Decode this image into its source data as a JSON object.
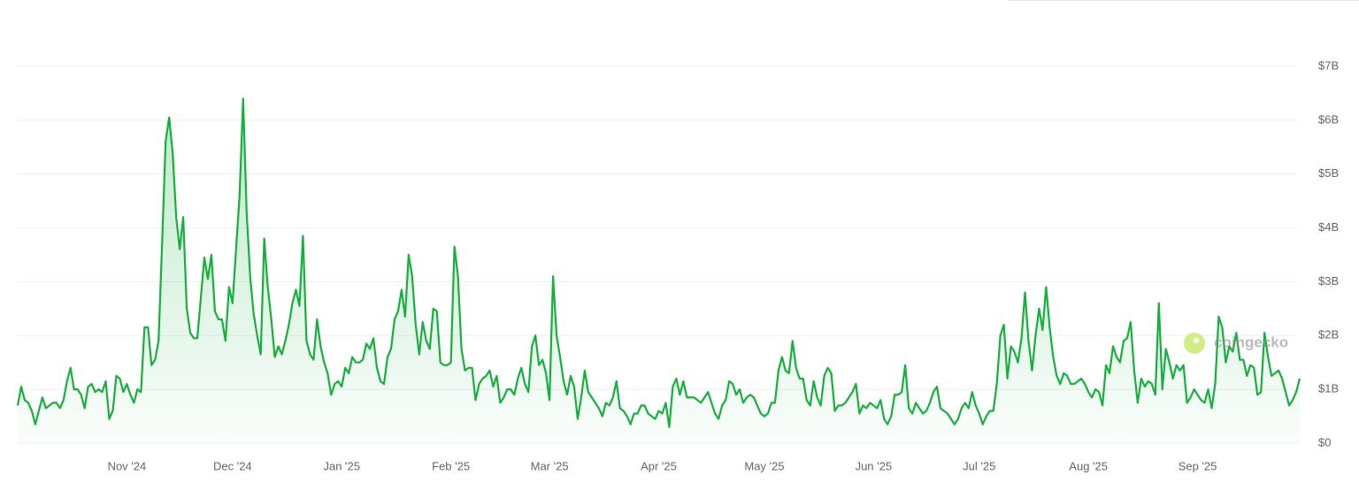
{
  "chart_data": {
    "type": "line",
    "watermark": "coingecko",
    "color": "#16b03c",
    "ylim": [
      0,
      7
    ],
    "yticks": [
      {
        "value": 0,
        "label": "$0"
      },
      {
        "value": 1,
        "label": "$1B"
      },
      {
        "value": 2,
        "label": "$2B"
      },
      {
        "value": 3,
        "label": "$3B"
      },
      {
        "value": 4,
        "label": "$4B"
      },
      {
        "value": 5,
        "label": "$5B"
      },
      {
        "value": 6,
        "label": "$6B"
      },
      {
        "value": 7,
        "label": "$7B"
      }
    ],
    "grid": true,
    "categories": [
      null,
      null,
      null,
      null,
      null,
      null,
      null,
      null,
      null,
      null,
      null,
      null,
      null,
      null,
      null,
      null,
      null,
      null,
      null,
      null,
      null,
      null,
      null,
      null,
      null,
      null,
      null,
      null,
      null,
      null,
      null,
      "Nov '24",
      null,
      null,
      null,
      null,
      null,
      null,
      null,
      null,
      null,
      null,
      null,
      null,
      null,
      null,
      null,
      null,
      null,
      null,
      null,
      null,
      null,
      null,
      null,
      null,
      null,
      null,
      null,
      null,
      null,
      "Dec '24",
      null,
      null,
      null,
      null,
      null,
      null,
      null,
      null,
      null,
      null,
      null,
      null,
      null,
      null,
      null,
      null,
      null,
      null,
      null,
      null,
      null,
      null,
      null,
      null,
      null,
      null,
      null,
      null,
      null,
      null,
      "Jan '25",
      null,
      null,
      null,
      null,
      null,
      null,
      null,
      null,
      null,
      null,
      null,
      null,
      null,
      null,
      null,
      null,
      null,
      null,
      null,
      null,
      null,
      null,
      null,
      null,
      null,
      null,
      null,
      null,
      null,
      null,
      "Feb '25",
      null,
      null,
      null,
      null,
      null,
      null,
      null,
      null,
      null,
      null,
      null,
      null,
      null,
      null,
      null,
      null,
      null,
      null,
      null,
      null,
      null,
      null,
      null,
      null,
      null,
      null,
      null,
      "Mar '25",
      null,
      null,
      null,
      null,
      null,
      null,
      null,
      null,
      null,
      null,
      null,
      null,
      null,
      null,
      null,
      null,
      null,
      null,
      null,
      null,
      null,
      null,
      null,
      null,
      null,
      null,
      null,
      null,
      null,
      null,
      "Apr '25",
      null,
      null,
      null,
      null,
      null,
      null,
      null,
      null,
      null,
      null,
      null,
      null,
      null,
      null,
      null,
      null,
      null,
      null,
      null,
      null,
      null,
      null,
      null,
      null,
      null,
      null,
      null,
      null,
      null,
      "May '25",
      null,
      null,
      null,
      null,
      null,
      null,
      null,
      null,
      null,
      null,
      null,
      null,
      null,
      null,
      null,
      null,
      null,
      null,
      null,
      null,
      null,
      null,
      null,
      null,
      null,
      null,
      null,
      null,
      null,
      null,
      "Jun '25",
      null,
      null,
      null,
      null,
      null,
      null,
      null,
      null,
      null,
      null,
      null,
      null,
      null,
      null,
      null,
      null,
      null,
      null,
      null,
      null,
      null,
      null,
      null,
      null,
      null,
      null,
      null,
      null,
      null,
      "Jul '25",
      null,
      null,
      null,
      null,
      null,
      null,
      null,
      null,
      null,
      null,
      null,
      null,
      null,
      null,
      null,
      null,
      null,
      null,
      null,
      null,
      null,
      null,
      null,
      null,
      null,
      null,
      null,
      null,
      null,
      null,
      "Aug '25",
      null,
      null,
      null,
      null,
      null,
      null,
      null,
      null,
      null,
      null,
      null,
      null,
      null,
      null,
      null,
      null,
      null,
      null,
      null,
      null,
      null,
      null,
      null,
      null,
      null,
      null,
      null,
      null,
      null,
      null,
      "Sep '25",
      null,
      null,
      null,
      null,
      null,
      null,
      null,
      null,
      null,
      null,
      null,
      null,
      null,
      null,
      null,
      null,
      null,
      null,
      null,
      null,
      null,
      null,
      null,
      null,
      null,
      null,
      null,
      null,
      null
    ],
    "values": [
      0.7,
      1.05,
      0.8,
      0.75,
      0.6,
      0.35,
      0.6,
      0.85,
      0.65,
      0.7,
      0.75,
      0.75,
      0.65,
      0.8,
      1.15,
      1.4,
      1.0,
      1.0,
      0.9,
      0.65,
      1.05,
      1.1,
      0.95,
      1.0,
      0.95,
      1.15,
      0.45,
      0.6,
      1.25,
      1.2,
      0.95,
      1.1,
      0.9,
      0.75,
      1.0,
      0.95,
      2.15,
      2.15,
      1.45,
      1.55,
      1.9,
      3.7,
      5.6,
      6.05,
      5.4,
      4.2,
      3.6,
      4.2,
      2.5,
      2.05,
      1.95,
      1.95,
      2.7,
      3.45,
      3.05,
      3.5,
      2.45,
      2.3,
      2.3,
      1.9,
      2.9,
      2.6,
      3.6,
      4.6,
      6.4,
      4.3,
      3.1,
      2.4,
      2.0,
      1.65,
      3.8,
      2.9,
      2.3,
      1.6,
      1.8,
      1.65,
      1.9,
      2.2,
      2.6,
      2.85,
      2.55,
      3.85,
      1.9,
      1.65,
      1.55,
      2.3,
      1.8,
      1.5,
      1.3,
      0.9,
      1.1,
      1.15,
      1.05,
      1.4,
      1.3,
      1.6,
      1.5,
      1.5,
      1.55,
      1.85,
      1.75,
      1.95,
      1.4,
      1.15,
      1.1,
      1.6,
      1.75,
      2.3,
      2.45,
      2.85,
      2.35,
      3.5,
      3.1,
      2.2,
      1.65,
      2.25,
      1.9,
      1.75,
      2.5,
      2.45,
      1.5,
      1.45,
      1.45,
      1.5,
      3.65,
      3.1,
      1.75,
      1.35,
      1.4,
      1.4,
      0.8,
      1.1,
      1.2,
      1.25,
      1.35,
      1.05,
      1.25,
      0.75,
      0.85,
      1.0,
      1.0,
      0.9,
      1.2,
      1.4,
      1.1,
      0.95,
      1.8,
      2.0,
      1.45,
      1.55,
      1.3,
      0.8,
      3.1,
      2.0,
      1.6,
      1.15,
      0.9,
      1.25,
      1.05,
      0.45,
      0.85,
      1.35,
      0.95,
      0.85,
      0.75,
      0.65,
      0.5,
      0.75,
      0.7,
      0.85,
      1.15,
      0.65,
      0.6,
      0.5,
      0.35,
      0.55,
      0.55,
      0.7,
      0.7,
      0.55,
      0.5,
      0.45,
      0.6,
      0.55,
      0.75,
      0.3,
      1.05,
      1.2,
      0.9,
      1.15,
      0.85,
      0.85,
      0.85,
      0.8,
      0.75,
      0.85,
      0.95,
      0.75,
      0.55,
      0.45,
      0.7,
      0.8,
      1.15,
      1.1,
      0.9,
      1.0,
      0.75,
      0.85,
      0.9,
      0.85,
      0.7,
      0.55,
      0.5,
      0.55,
      0.75,
      0.75,
      1.35,
      1.6,
      1.35,
      1.3,
      1.9,
      1.4,
      1.2,
      1.2,
      0.8,
      0.7,
      1.15,
      0.85,
      0.7,
      1.25,
      1.4,
      1.3,
      0.6,
      0.7,
      0.7,
      0.75,
      0.85,
      0.95,
      1.1,
      0.55,
      0.7,
      0.65,
      0.75,
      0.7,
      0.65,
      0.8,
      0.45,
      0.35,
      0.5,
      0.9,
      0.9,
      0.95,
      1.45,
      0.65,
      0.55,
      0.75,
      0.65,
      0.55,
      0.6,
      0.75,
      0.95,
      1.05,
      0.65,
      0.6,
      0.55,
      0.45,
      0.35,
      0.45,
      0.65,
      0.75,
      0.65,
      0.95,
      0.7,
      0.55,
      0.35,
      0.5,
      0.6,
      0.6,
      1.1,
      2.0,
      2.2,
      1.2,
      1.8,
      1.7,
      1.5,
      1.95,
      2.8,
      1.9,
      1.35,
      2.0,
      2.5,
      2.1,
      2.9,
      2.15,
      1.6,
      1.25,
      1.1,
      1.3,
      1.25,
      1.1,
      1.1,
      1.15,
      1.2,
      1.1,
      0.95,
      0.85,
      1.0,
      0.95,
      0.7,
      1.45,
      1.3,
      1.8,
      1.6,
      1.5,
      1.9,
      1.95,
      2.25,
      1.35,
      0.75,
      1.2,
      1.05,
      1.15,
      1.1,
      0.9,
      2.6,
      1.0,
      1.75,
      1.5,
      1.2,
      1.45,
      1.35,
      1.45,
      0.75,
      0.85,
      1.0,
      0.9,
      0.8,
      0.75,
      1.0,
      0.65,
      1.1,
      2.35,
      2.15,
      1.5,
      1.8,
      1.7,
      2.05,
      1.55,
      1.55,
      1.25,
      1.45,
      1.4,
      0.9,
      0.95,
      2.05,
      1.6,
      1.25,
      1.3,
      1.35,
      1.2,
      0.95,
      0.7,
      0.8,
      0.95,
      1.2
    ]
  }
}
